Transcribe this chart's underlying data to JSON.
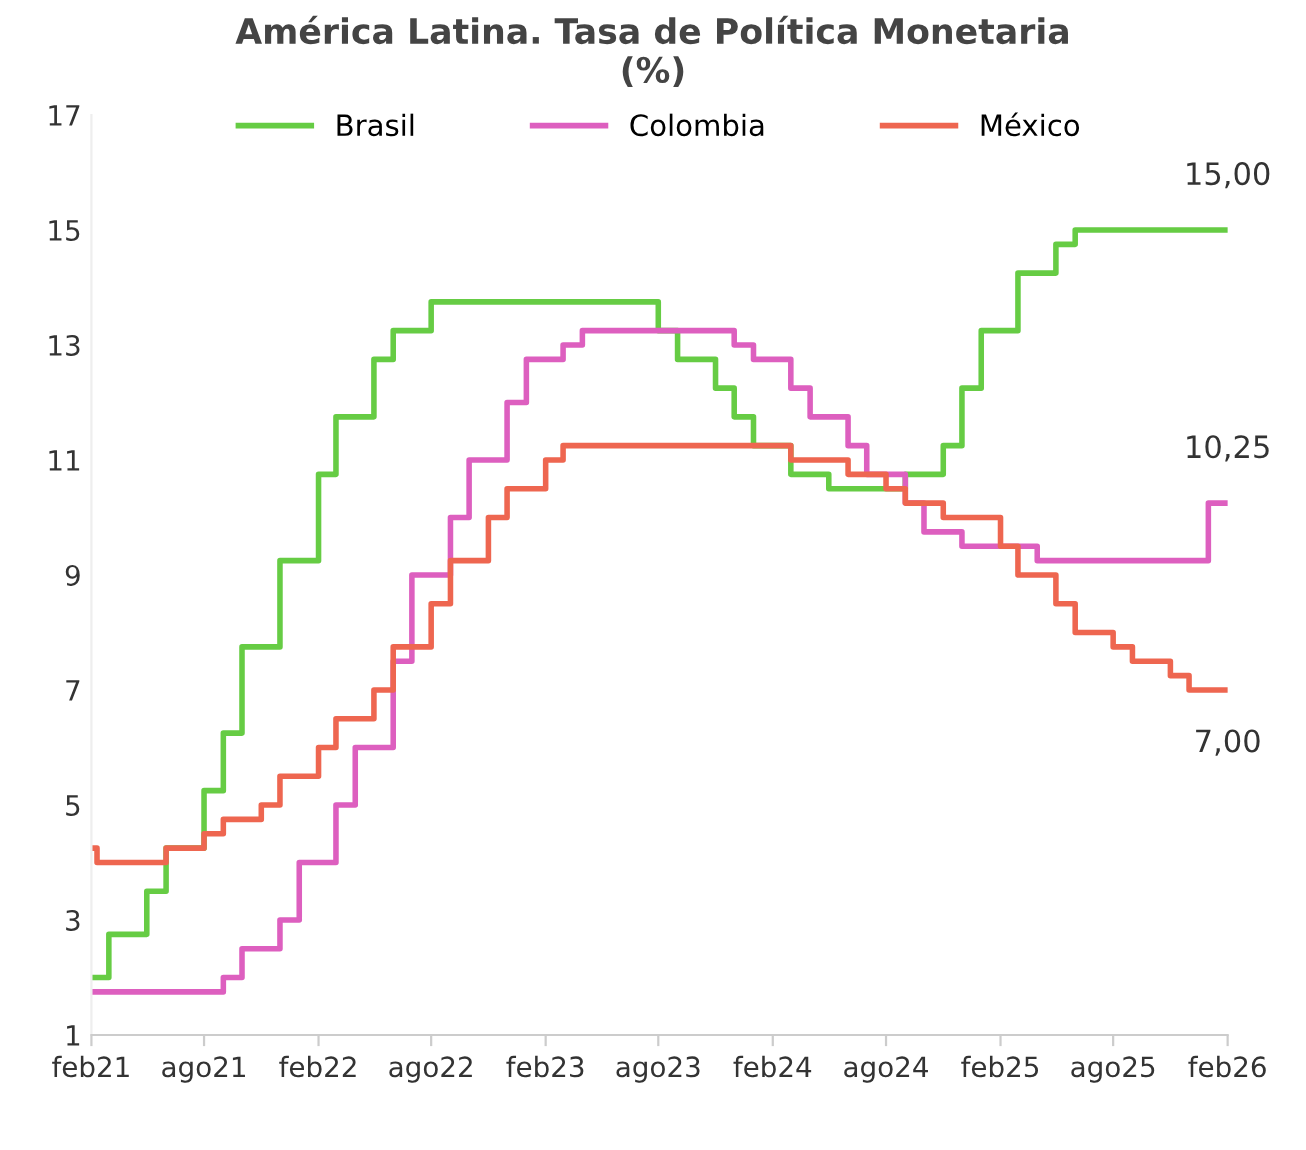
{
  "chart_data": {
    "type": "step",
    "title": "América Latina. Tasa de Política Monetaria\n(%)",
    "series": [
      {
        "name": "Brasil",
        "color": "#66cc44",
        "x": [
          "2021-02",
          "2021-03",
          "2021-05",
          "2021-06",
          "2021-08",
          "2021-09",
          "2021-10",
          "2021-12",
          "2022-02",
          "2022-03",
          "2022-05",
          "2022-06",
          "2022-08",
          "2023-08",
          "2023-09",
          "2023-11",
          "2023-12",
          "2024-01",
          "2024-03",
          "2024-05",
          "2024-09",
          "2024-11",
          "2024-12",
          "2025-01",
          "2025-03",
          "2025-05",
          "2025-06",
          "2026-02"
        ],
        "values": [
          2.0,
          2.75,
          3.5,
          4.25,
          5.25,
          6.25,
          7.75,
          9.25,
          10.75,
          11.75,
          12.75,
          13.25,
          13.75,
          13.25,
          12.75,
          12.25,
          11.75,
          11.25,
          10.75,
          10.5,
          10.75,
          11.25,
          12.25,
          13.25,
          14.25,
          14.75,
          15.0,
          15.0
        ]
      },
      {
        "name": "Colombia",
        "color": "#dd5fbf",
        "x": [
          "2021-02",
          "2021-09",
          "2021-10",
          "2021-12",
          "2022-01",
          "2022-03",
          "2022-04",
          "2022-06",
          "2022-07",
          "2022-09",
          "2022-10",
          "2022-12",
          "2023-01",
          "2023-03",
          "2023-04",
          "2023-12",
          "2024-01",
          "2024-03",
          "2024-04",
          "2024-06",
          "2024-07",
          "2024-09",
          "2024-10",
          "2024-12",
          "2025-04",
          "2026-01",
          "2026-02"
        ],
        "values": [
          1.75,
          2.0,
          2.5,
          3.0,
          4.0,
          5.0,
          6.0,
          7.5,
          9.0,
          10.0,
          11.0,
          12.0,
          12.75,
          13.0,
          13.25,
          13.0,
          12.75,
          12.25,
          11.75,
          11.25,
          10.75,
          10.25,
          9.75,
          9.5,
          9.25,
          10.25,
          10.25
        ]
      },
      {
        "name": "México",
        "color": "#ee6650",
        "x": [
          "2021-02-01",
          "2021-02-10",
          "2021-06",
          "2021-08",
          "2021-09",
          "2021-11",
          "2021-12",
          "2022-02",
          "2022-03",
          "2022-05",
          "2022-06",
          "2022-08",
          "2022-09",
          "2022-11",
          "2022-12",
          "2023-02",
          "2023-03",
          "2024-03",
          "2024-06",
          "2024-08",
          "2024-09",
          "2024-11",
          "2025-02",
          "2025-03",
          "2025-05",
          "2025-06",
          "2025-08",
          "2025-09",
          "2025-11",
          "2025-12",
          "2026-02"
        ],
        "values": [
          4.25,
          4.0,
          4.25,
          4.5,
          4.75,
          5.0,
          5.5,
          6.0,
          6.5,
          7.0,
          7.75,
          8.5,
          9.25,
          10.0,
          10.5,
          11.0,
          11.25,
          11.0,
          10.75,
          10.5,
          10.25,
          10.0,
          9.5,
          9.0,
          8.5,
          8.0,
          7.75,
          7.5,
          7.25,
          7.0,
          7.0
        ]
      }
    ],
    "annotations": [
      {
        "text": "15,00",
        "x": "2026-02",
        "y": 15.0
      },
      {
        "text": "10,25",
        "x": "2026-02",
        "y": 10.25
      },
      {
        "text": "7,00",
        "x": "2026-02",
        "y": 7.0
      }
    ],
    "xlim": [
      "2021-02",
      "2026-02"
    ],
    "xticks": [
      {
        "value": "2021-02",
        "label": "feb21"
      },
      {
        "value": "2021-08",
        "label": "ago21"
      },
      {
        "value": "2022-02",
        "label": "feb22"
      },
      {
        "value": "2022-08",
        "label": "ago22"
      },
      {
        "value": "2023-02",
        "label": "feb23"
      },
      {
        "value": "2023-08",
        "label": "ago23"
      },
      {
        "value": "2024-02",
        "label": "feb24"
      },
      {
        "value": "2024-08",
        "label": "ago24"
      },
      {
        "value": "2025-02",
        "label": "feb25"
      },
      {
        "value": "2025-08",
        "label": "ago25"
      },
      {
        "value": "2026-02",
        "label": "feb26"
      }
    ],
    "ylim": [
      1,
      17
    ],
    "yticks": [
      1,
      3,
      5,
      7,
      9,
      11,
      13,
      15,
      17
    ],
    "grid": false,
    "legend": "top",
    "line_style": "solid"
  }
}
